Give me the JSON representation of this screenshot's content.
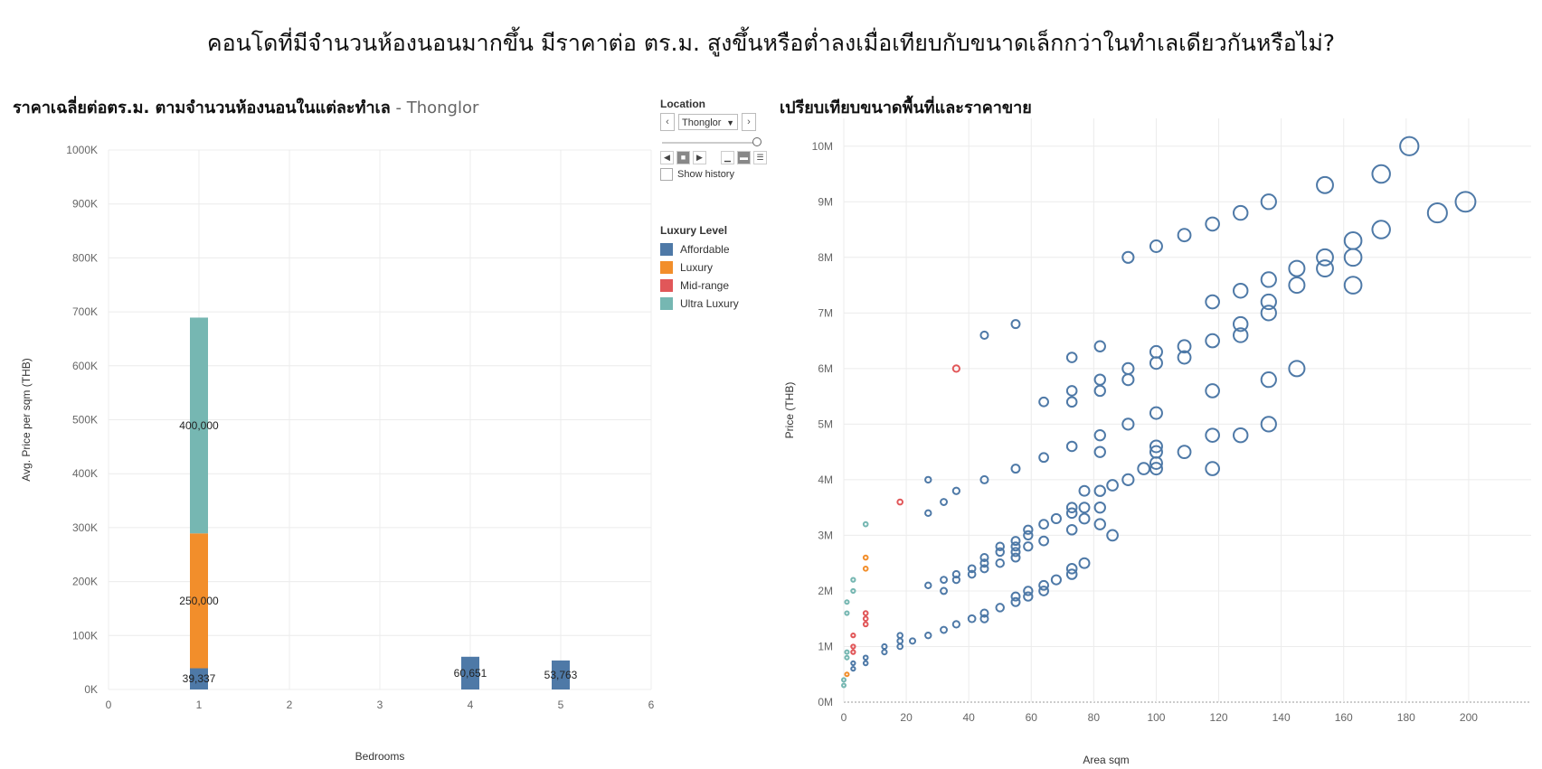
{
  "page": {
    "title": "คอนโดที่มีจำนวนห้องนอนมากขึ้น มีราคาต่อ ตร.ม. สูงขึ้นหรือต่ำลงเมื่อเทียบกับขนาดเล็กกว่าในทำเลเดียวกันหรือไม่?",
    "left_title": "ราคาเฉลี่ยต่อตร.ม. ตามจำนวนห้องนอนในแต่ละทำเล",
    "left_title_sep": " - ",
    "left_title_location": "Thonglor",
    "right_title": "เปรียบเทียบขนาดพื้นที่และราคาขาย"
  },
  "controls": {
    "location_label": "Location",
    "location_value": "Thonglor",
    "prev_icon": "chevron-left-icon",
    "next_icon": "chevron-right-icon",
    "show_history_label": "Show history",
    "show_history_checked": false
  },
  "legend": {
    "title": "Luxury Level",
    "items": [
      {
        "label": "Affordable",
        "color": "#4e79a7"
      },
      {
        "label": "Luxury",
        "color": "#f28e2b"
      },
      {
        "label": "Mid-range",
        "color": "#e15759"
      },
      {
        "label": "Ultra Luxury",
        "color": "#76b7b2"
      }
    ]
  },
  "chart_data": [
    {
      "type": "bar",
      "stacked": true,
      "title": "ราคาเฉลี่ยต่อตร.ม. ตามจำนวนห้องนอนในแต่ละทำเล - Thonglor",
      "xlabel": "Bedrooms",
      "ylabel": "Avg. Price per sqm (THB)",
      "xlim": [
        0,
        6
      ],
      "xticks": [
        "0",
        "1",
        "2",
        "3",
        "4",
        "5",
        "6"
      ],
      "ylim": [
        0,
        1000000
      ],
      "yticks": [
        "0K",
        "100K",
        "200K",
        "300K",
        "400K",
        "500K",
        "600K",
        "700K",
        "800K",
        "900K",
        "1000K"
      ],
      "grid": true,
      "bars": [
        {
          "x": 1,
          "segments": [
            {
              "series": "Affordable",
              "value": 39337,
              "label": "39,337"
            },
            {
              "series": "Luxury",
              "value": 250000,
              "label": "250,000"
            },
            {
              "series": "Ultra Luxury",
              "value": 400000,
              "label": "400,000"
            }
          ]
        },
        {
          "x": 4,
          "segments": [
            {
              "series": "Affordable",
              "value": 60651,
              "label": "60,651"
            }
          ]
        },
        {
          "x": 5,
          "segments": [
            {
              "series": "Affordable",
              "value": 53763,
              "label": "53,763"
            }
          ]
        }
      ]
    },
    {
      "type": "scatter",
      "title": "เปรียบเทียบขนาดพื้นที่และราคาขาย",
      "xlabel": "Area sqm",
      "ylabel": "Price (THB)",
      "xlim": [
        0,
        220
      ],
      "xticks": [
        "0",
        "20",
        "40",
        "60",
        "80",
        "100",
        "120",
        "140",
        "160",
        "180",
        "200"
      ],
      "ylim": [
        0,
        10500000
      ],
      "yticks": [
        "0M",
        "1M",
        "2M",
        "3M",
        "4M",
        "5M",
        "6M",
        "7M",
        "8M",
        "9M",
        "10M"
      ],
      "marker_size_by": "area",
      "series": [
        {
          "name": "Ultra Luxury",
          "points": [
            [
              0,
              300000
            ],
            [
              0,
              400000
            ],
            [
              1,
              800000
            ],
            [
              1,
              900000
            ],
            [
              1,
              1600000
            ],
            [
              1,
              1800000
            ],
            [
              3,
              2000000
            ],
            [
              3,
              2200000
            ],
            [
              7,
              3200000
            ]
          ]
        },
        {
          "name": "Luxury",
          "points": [
            [
              1,
              500000
            ],
            [
              7,
              2400000
            ],
            [
              7,
              2600000
            ]
          ]
        },
        {
          "name": "Mid-range",
          "points": [
            [
              3,
              900000
            ],
            [
              3,
              1000000
            ],
            [
              3,
              1200000
            ],
            [
              7,
              1400000
            ],
            [
              7,
              1500000
            ],
            [
              7,
              1600000
            ],
            [
              18,
              3600000
            ],
            [
              36,
              6000000
            ]
          ]
        },
        {
          "name": "Affordable",
          "points": [
            [
              3,
              600000
            ],
            [
              3,
              700000
            ],
            [
              7,
              700000
            ],
            [
              7,
              800000
            ],
            [
              13,
              900000
            ],
            [
              13,
              1000000
            ],
            [
              18,
              1000000
            ],
            [
              18,
              1100000
            ],
            [
              18,
              1200000
            ],
            [
              22,
              1100000
            ],
            [
              27,
              1200000
            ],
            [
              27,
              2100000
            ],
            [
              27,
              3400000
            ],
            [
              27,
              4000000
            ],
            [
              32,
              1300000
            ],
            [
              32,
              2000000
            ],
            [
              32,
              2200000
            ],
            [
              32,
              3600000
            ],
            [
              36,
              1400000
            ],
            [
              36,
              2200000
            ],
            [
              36,
              2300000
            ],
            [
              36,
              3800000
            ],
            [
              41,
              1500000
            ],
            [
              41,
              2300000
            ],
            [
              41,
              2400000
            ],
            [
              45,
              1500000
            ],
            [
              45,
              1600000
            ],
            [
              45,
              2400000
            ],
            [
              45,
              2500000
            ],
            [
              45,
              2600000
            ],
            [
              45,
              4000000
            ],
            [
              45,
              6600000
            ],
            [
              50,
              1700000
            ],
            [
              50,
              2500000
            ],
            [
              50,
              2700000
            ],
            [
              50,
              2800000
            ],
            [
              55,
              1800000
            ],
            [
              55,
              1900000
            ],
            [
              55,
              2600000
            ],
            [
              55,
              2700000
            ],
            [
              55,
              2800000
            ],
            [
              55,
              2900000
            ],
            [
              55,
              4200000
            ],
            [
              55,
              6800000
            ],
            [
              59,
              1900000
            ],
            [
              59,
              2000000
            ],
            [
              59,
              2800000
            ],
            [
              59,
              3000000
            ],
            [
              59,
              3100000
            ],
            [
              64,
              2000000
            ],
            [
              64,
              2100000
            ],
            [
              64,
              2900000
            ],
            [
              64,
              3200000
            ],
            [
              64,
              4400000
            ],
            [
              64,
              5400000
            ],
            [
              68,
              2200000
            ],
            [
              68,
              3300000
            ],
            [
              73,
              2300000
            ],
            [
              73,
              2400000
            ],
            [
              73,
              3100000
            ],
            [
              73,
              3400000
            ],
            [
              73,
              3500000
            ],
            [
              73,
              4600000
            ],
            [
              73,
              5400000
            ],
            [
              73,
              5600000
            ],
            [
              73,
              6200000
            ],
            [
              77,
              2500000
            ],
            [
              77,
              3300000
            ],
            [
              77,
              3500000
            ],
            [
              77,
              3800000
            ],
            [
              82,
              3200000
            ],
            [
              82,
              3500000
            ],
            [
              82,
              3800000
            ],
            [
              82,
              4500000
            ],
            [
              82,
              4800000
            ],
            [
              82,
              5600000
            ],
            [
              82,
              5800000
            ],
            [
              82,
              6400000
            ],
            [
              86,
              3000000
            ],
            [
              86,
              3900000
            ],
            [
              91,
              4000000
            ],
            [
              91,
              5000000
            ],
            [
              91,
              5800000
            ],
            [
              91,
              6000000
            ],
            [
              91,
              8000000
            ],
            [
              96,
              4200000
            ],
            [
              100,
              4200000
            ],
            [
              100,
              4300000
            ],
            [
              100,
              4500000
            ],
            [
              100,
              4600000
            ],
            [
              100,
              5200000
            ],
            [
              100,
              6100000
            ],
            [
              100,
              6300000
            ],
            [
              100,
              8200000
            ],
            [
              109,
              4500000
            ],
            [
              109,
              6200000
            ],
            [
              109,
              6400000
            ],
            [
              109,
              8400000
            ],
            [
              118,
              4200000
            ],
            [
              118,
              4800000
            ],
            [
              118,
              5600000
            ],
            [
              118,
              6500000
            ],
            [
              118,
              7200000
            ],
            [
              118,
              8600000
            ],
            [
              127,
              4800000
            ],
            [
              127,
              6600000
            ],
            [
              127,
              6800000
            ],
            [
              127,
              7400000
            ],
            [
              127,
              8800000
            ],
            [
              136,
              5000000
            ],
            [
              136,
              5800000
            ],
            [
              136,
              7000000
            ],
            [
              136,
              7200000
            ],
            [
              136,
              7600000
            ],
            [
              136,
              9000000
            ],
            [
              145,
              6000000
            ],
            [
              145,
              7500000
            ],
            [
              145,
              7800000
            ],
            [
              154,
              7800000
            ],
            [
              154,
              8000000
            ],
            [
              154,
              9300000
            ],
            [
              163,
              7500000
            ],
            [
              163,
              8000000
            ],
            [
              163,
              8300000
            ],
            [
              172,
              8500000
            ],
            [
              172,
              9500000
            ],
            [
              181,
              10000000
            ],
            [
              190,
              8800000
            ],
            [
              199,
              9000000
            ]
          ]
        }
      ]
    }
  ]
}
